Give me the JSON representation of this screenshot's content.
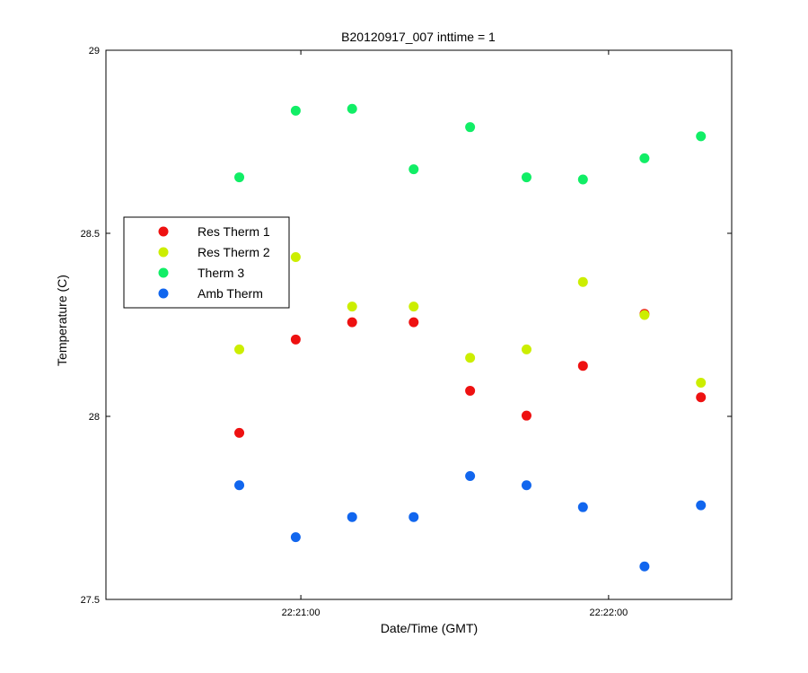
{
  "chart_data": {
    "type": "scatter",
    "title": "B20120917_007 inttime = 1",
    "xlabel": "Date/Time (GMT)",
    "ylabel": "Temperature (C)",
    "xlim": [
      "22:20:22",
      "22:22:24"
    ],
    "ylim": [
      27.5,
      29
    ],
    "x_ticks": [
      "22:21:00",
      "22:22:00"
    ],
    "y_ticks": [
      "27.5",
      "28",
      "28.5",
      "29"
    ],
    "grid": false,
    "legend_position": "left",
    "x": [
      "22:20:48",
      "22:20:59",
      "22:21:10",
      "22:21:22",
      "22:21:33",
      "22:21:44",
      "22:21:55",
      "22:22:07",
      "22:22:18"
    ],
    "series": [
      {
        "name": "Res Therm 1",
        "color": "#ee1111",
        "values": [
          27.955,
          28.21,
          28.257,
          28.257,
          28.07,
          28.002,
          28.138,
          28.28,
          28.052
        ]
      },
      {
        "name": "Res Therm 2",
        "color": "#ccee00",
        "values": [
          28.183,
          28.435,
          28.3,
          28.3,
          28.16,
          28.183,
          28.367,
          28.277,
          28.092
        ]
      },
      {
        "name": "Therm 3",
        "color": "#11ee66",
        "values": [
          28.653,
          28.835,
          28.84,
          28.675,
          28.79,
          28.653,
          28.647,
          28.705,
          28.765
        ]
      },
      {
        "name": "Amb Therm",
        "color": "#1166ee",
        "values": [
          27.812,
          27.67,
          27.725,
          27.725,
          27.837,
          27.812,
          27.752,
          27.59,
          27.757
        ]
      }
    ]
  }
}
